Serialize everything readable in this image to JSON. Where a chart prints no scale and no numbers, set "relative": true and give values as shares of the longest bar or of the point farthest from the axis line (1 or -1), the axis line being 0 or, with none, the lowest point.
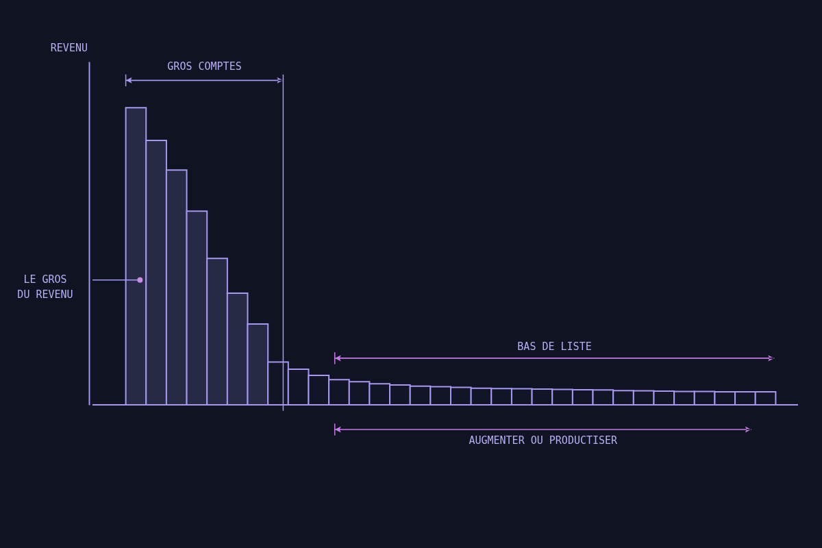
{
  "chart_data": {
    "type": "bar",
    "relative": true,
    "categories": [
      null,
      null,
      null,
      null,
      null,
      null,
      null,
      null,
      null,
      null,
      null,
      null,
      null,
      null,
      null,
      null,
      null,
      null,
      null,
      null,
      null,
      null,
      null,
      null,
      null,
      null,
      null,
      null,
      null,
      null,
      null,
      null
    ],
    "values": [
      1,
      0.89,
      0.79,
      0.652,
      0.493,
      0.376,
      0.272,
      0.144,
      0.12,
      0.099,
      0.085,
      0.078,
      0.071,
      0.067,
      0.063,
      0.061,
      0.059,
      0.056,
      0.055,
      0.054,
      0.053,
      0.052,
      0.051,
      0.05,
      0.048,
      0.047,
      0.046,
      0.045,
      0.045,
      0.044,
      0.044,
      0.044
    ],
    "colors": [
      "#262a44",
      "#262a44",
      "#262a44",
      "#262a44",
      "#262a44",
      "#262a44",
      "#262a44",
      "#111526",
      "#111526",
      "#111526",
      "#111526",
      "#111526",
      "#111526",
      "#111526",
      "#111526",
      "#111526",
      "#111526",
      "#111526",
      "#111526",
      "#111526",
      "#111526",
      "#111526",
      "#111526",
      "#111526",
      "#111526",
      "#111526",
      "#111526",
      "#111526",
      "#111526",
      "#111526",
      "#111526",
      "#111526"
    ],
    "annotations": [
      "GROS COMPTES",
      "BAS DE LISTE",
      "AUGMENTER OU PRODUCTISER",
      "LE GROS DU REVENU",
      "REVENU"
    ]
  }
}
